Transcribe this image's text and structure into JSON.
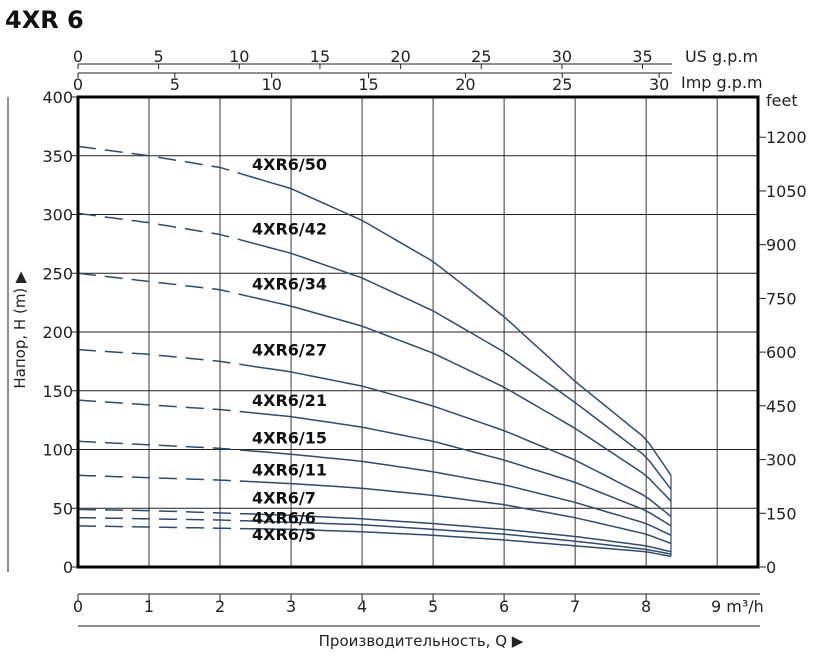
{
  "chart_data": {
    "type": "line",
    "title": "4XR 6",
    "ylabel": "Напор, H (m) ▶",
    "xlabel": "Производительность, Q ▶",
    "x_unit_label": "9 m³/h",
    "right_unit_label": "feet",
    "top_us_label": "US g.p.m",
    "top_imp_label": "Imp g.p.m",
    "xlim": [
      0,
      9
    ],
    "ylim": [
      0,
      400
    ],
    "x_ticks": [
      "0",
      "1",
      "2",
      "3",
      "4",
      "5",
      "6",
      "7",
      "8"
    ],
    "y_ticks": [
      "0",
      "50",
      "100",
      "150",
      "200",
      "250",
      "300",
      "350",
      "400"
    ],
    "y_tick_values": [
      0,
      50,
      100,
      150,
      200,
      250,
      300,
      350,
      400
    ],
    "feet_ticks": [
      "0",
      "150",
      "300",
      "450",
      "600",
      "750",
      "900",
      "1050",
      "1200"
    ],
    "feet_tick_values": [
      0,
      150,
      300,
      450,
      600,
      750,
      900,
      1050,
      1200
    ],
    "us_gpm_ticks": [
      "0",
      "5",
      "10",
      "15",
      "20",
      "25",
      "30",
      "35"
    ],
    "us_gpm_values": [
      0,
      5,
      10,
      15,
      20,
      25,
      30,
      35
    ],
    "imp_gpm_ticks": [
      "0",
      "5",
      "10",
      "15",
      "20",
      "25",
      "30"
    ],
    "imp_gpm_values": [
      0,
      5,
      10,
      15,
      20,
      25,
      30
    ],
    "grid": true,
    "dashed_until_x": 2.4,
    "series": [
      {
        "name": "4XR6/50",
        "x": [
          0,
          1,
          2,
          3,
          4,
          5,
          6,
          7,
          8,
          8.35
        ],
        "y": [
          358,
          350,
          340,
          322,
          295,
          260,
          213,
          158,
          109,
          78
        ]
      },
      {
        "name": "4XR6/42",
        "x": [
          0,
          1,
          2,
          3,
          4,
          5,
          6,
          7,
          8,
          8.35
        ],
        "y": [
          301,
          293,
          283,
          267,
          246,
          218,
          183,
          140,
          94,
          66
        ]
      },
      {
        "name": "4XR6/34",
        "x": [
          0,
          1,
          2,
          3,
          4,
          5,
          6,
          7,
          8,
          8.35
        ],
        "y": [
          250,
          243,
          236,
          222,
          205,
          182,
          153,
          118,
          78,
          56
        ]
      },
      {
        "name": "4XR6/27",
        "x": [
          0,
          1,
          2,
          3,
          4,
          5,
          6,
          7,
          8,
          8.35
        ],
        "y": [
          185,
          181,
          175,
          166,
          154,
          137,
          116,
          91,
          60,
          43
        ]
      },
      {
        "name": "4XR6/21",
        "x": [
          0,
          1,
          2,
          3,
          4,
          5,
          6,
          7,
          8,
          8.35
        ],
        "y": [
          142,
          138,
          134,
          128,
          119,
          107,
          91,
          72,
          48,
          35
        ]
      },
      {
        "name": "4XR6/15",
        "x": [
          0,
          1,
          2,
          3,
          4,
          5,
          6,
          7,
          8,
          8.35
        ],
        "y": [
          107,
          104,
          101,
          96,
          90,
          81,
          70,
          55,
          37,
          27
        ]
      },
      {
        "name": "4XR6/11",
        "x": [
          0,
          1,
          2,
          3,
          4,
          5,
          6,
          7,
          8,
          8.35
        ],
        "y": [
          78,
          76,
          74,
          71,
          67,
          61,
          53,
          42,
          28,
          20
        ]
      },
      {
        "name": "4XR6/7",
        "x": [
          0,
          1,
          2,
          3,
          4,
          5,
          6,
          7,
          8,
          8.35
        ],
        "y": [
          49,
          48,
          46,
          44,
          41,
          37,
          32,
          26,
          18,
          13
        ]
      },
      {
        "name": "4XR6/6",
        "x": [
          0,
          1,
          2,
          3,
          4,
          5,
          6,
          7,
          8,
          8.35
        ],
        "y": [
          42,
          41,
          40,
          38,
          36,
          32,
          28,
          22,
          15,
          11
        ]
      },
      {
        "name": "4XR6/5",
        "x": [
          0,
          1,
          2,
          3,
          4,
          5,
          6,
          7,
          8,
          8.35
        ],
        "y": [
          35,
          34,
          33,
          32,
          30,
          27,
          23,
          18,
          13,
          9
        ]
      }
    ],
    "label_x": 2.45,
    "label_y": [
      338,
      283,
      236,
      180,
      137,
      105,
      78,
      54,
      37,
      23
    ]
  }
}
